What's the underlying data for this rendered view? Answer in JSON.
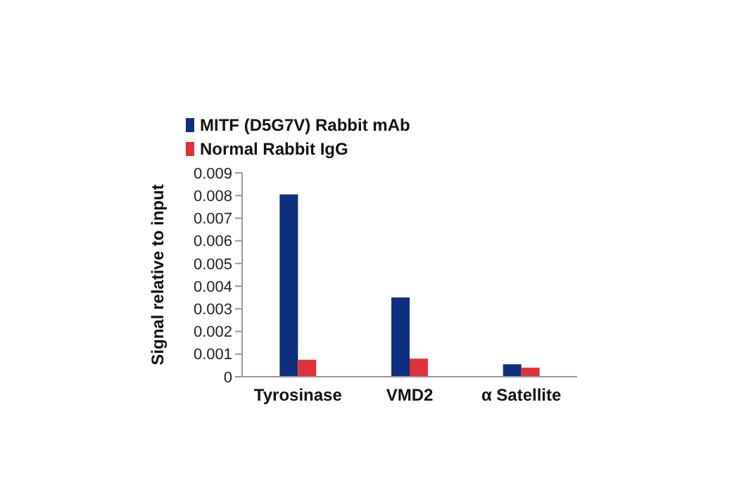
{
  "chart_data": {
    "type": "bar",
    "ylabel": "Signal relative to input",
    "categories": [
      "Tyrosinase",
      "VMD2",
      "α Satellite"
    ],
    "series": [
      {
        "name": "MITF (D5G7V) Rabbit mAb",
        "color": "#0d2f7e",
        "values": [
          0.00805,
          0.0035,
          0.00055
        ]
      },
      {
        "name": "Normal Rabbit IgG",
        "color": "#e0323a",
        "values": [
          0.00075,
          0.0008,
          0.0004
        ]
      }
    ],
    "ylim": [
      0,
      0.009
    ],
    "yticks": [
      0,
      0.001,
      0.002,
      0.003,
      0.004,
      0.005,
      0.006,
      0.007,
      0.008,
      0.009
    ],
    "grid": false,
    "legend": "top left"
  }
}
